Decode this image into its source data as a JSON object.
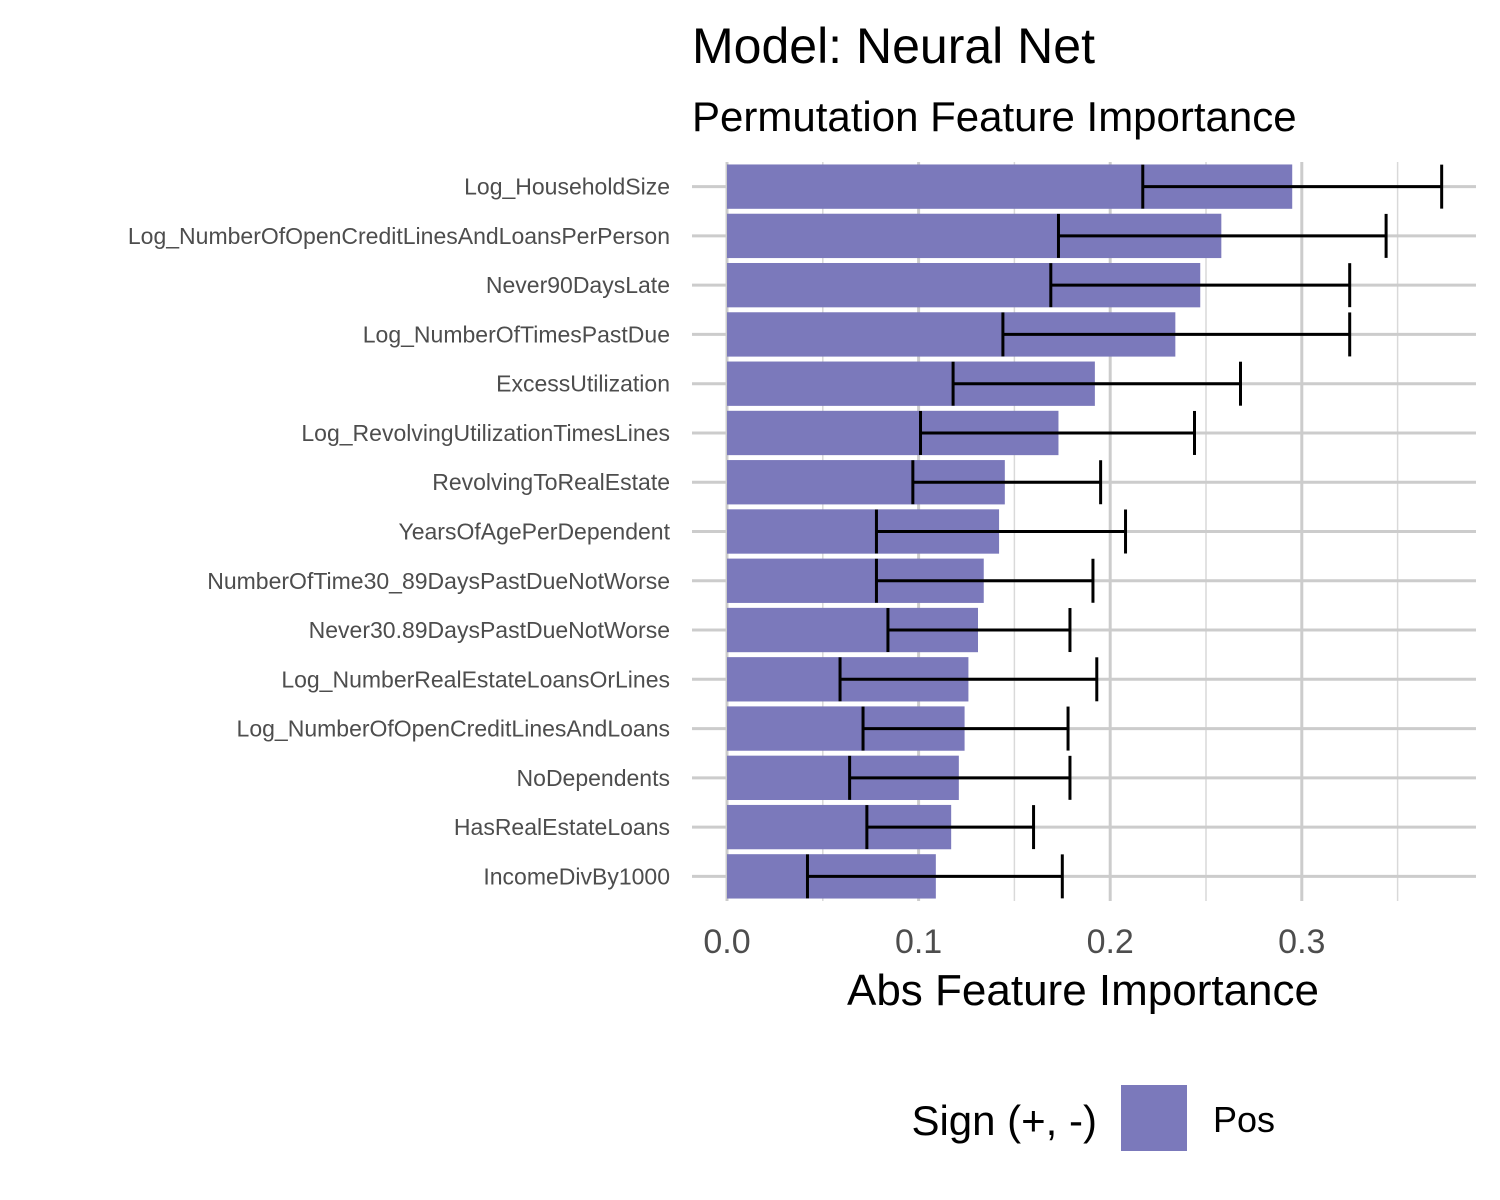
{
  "chart_data": {
    "type": "bar",
    "orientation": "horizontal",
    "title": "Model: Neural Net",
    "subtitle": "Permutation Feature Importance",
    "xlabel": "Abs Feature Importance",
    "ylabel": "",
    "xlim": [
      0,
      0.39
    ],
    "xticks": [
      0.0,
      0.1,
      0.2,
      0.3
    ],
    "xtick_labels": [
      "0.0",
      "0.1",
      "0.2",
      "0.3"
    ],
    "grid": true,
    "bar_color": "#7b79bb",
    "legend": {
      "title": "Sign (+, -)",
      "placement": "bottom",
      "entries": [
        {
          "label": "Pos",
          "color": "#7b79bb"
        }
      ]
    },
    "categories": [
      "Log_HouseholdSize",
      "Log_NumberOfOpenCreditLinesAndLoansPerPerson",
      "Never90DaysLate",
      "Log_NumberOfTimesPastDue",
      "ExcessUtilization",
      "Log_RevolvingUtilizationTimesLines",
      "RevolvingToRealEstate",
      "YearsOfAgePerDependent",
      "NumberOfTime30_89DaysPastDueNotWorse",
      "Never30.89DaysPastDueNotWorse",
      "Log_NumberRealEstateLoansOrLines",
      "Log_NumberOfOpenCreditLinesAndLoans",
      "NoDependents",
      "HasRealEstateLoans",
      "IncomeDivBy1000"
    ],
    "values": [
      0.295,
      0.258,
      0.247,
      0.234,
      0.192,
      0.173,
      0.145,
      0.142,
      0.134,
      0.131,
      0.126,
      0.124,
      0.121,
      0.117,
      0.109
    ],
    "error_low": [
      0.217,
      0.173,
      0.169,
      0.144,
      0.118,
      0.101,
      0.097,
      0.078,
      0.078,
      0.084,
      0.059,
      0.071,
      0.064,
      0.073,
      0.042
    ],
    "error_high": [
      0.373,
      0.344,
      0.325,
      0.325,
      0.268,
      0.244,
      0.195,
      0.208,
      0.191,
      0.179,
      0.193,
      0.178,
      0.179,
      0.16,
      0.175
    ]
  }
}
